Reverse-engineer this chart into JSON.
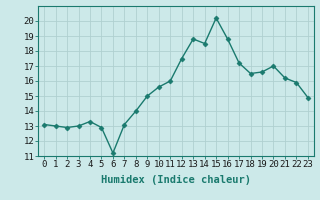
{
  "x": [
    0,
    1,
    2,
    3,
    4,
    5,
    6,
    7,
    8,
    9,
    10,
    11,
    12,
    13,
    14,
    15,
    16,
    17,
    18,
    19,
    20,
    21,
    22,
    23
  ],
  "y": [
    13.1,
    13.0,
    12.9,
    13.0,
    13.3,
    12.9,
    11.2,
    13.1,
    14.0,
    15.0,
    15.6,
    16.0,
    17.5,
    18.8,
    18.5,
    20.2,
    18.8,
    17.2,
    16.5,
    16.6,
    17.0,
    16.2,
    15.9,
    14.9
  ],
  "line_color": "#1a7a6e",
  "marker": "D",
  "marker_size": 2.5,
  "bg_color": "#cce9e9",
  "grid_color": "#b0d0d0",
  "xlabel": "Humidex (Indice chaleur)",
  "ylim": [
    11,
    21
  ],
  "xlim": [
    -0.5,
    23.5
  ],
  "yticks": [
    11,
    12,
    13,
    14,
    15,
    16,
    17,
    18,
    19,
    20
  ],
  "xticks": [
    0,
    1,
    2,
    3,
    4,
    5,
    6,
    7,
    8,
    9,
    10,
    11,
    12,
    13,
    14,
    15,
    16,
    17,
    18,
    19,
    20,
    21,
    22,
    23
  ],
  "tick_fontsize": 6.5,
  "label_fontsize": 7.5
}
